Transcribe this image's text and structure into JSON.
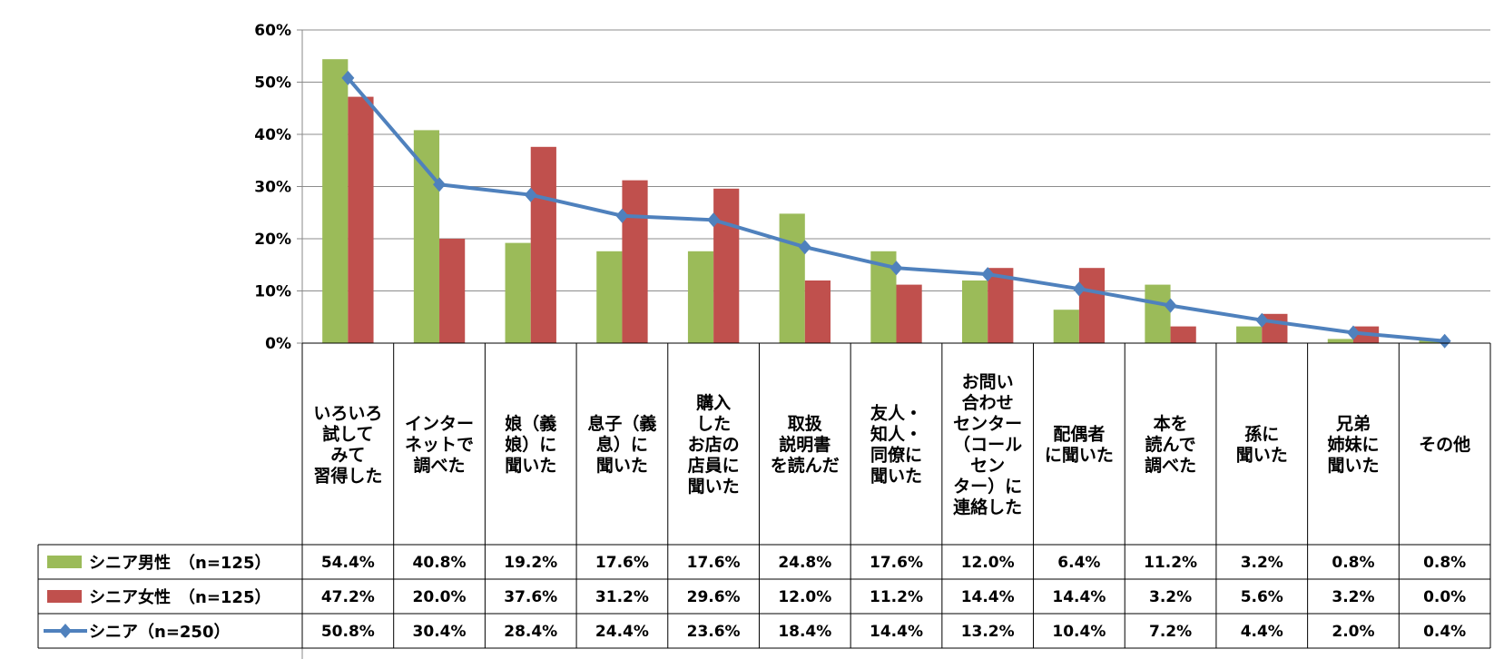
{
  "colors": {
    "male": "#9bbb59",
    "female": "#c0504d",
    "all": "#4f81bd"
  },
  "chart_data": {
    "type": "bar",
    "title": "",
    "xlabel": "",
    "ylabel": "",
    "ylim": [
      0,
      60
    ],
    "yticks": [
      "0%",
      "10%",
      "20%",
      "30%",
      "40%",
      "50%",
      "60%"
    ],
    "grid": true,
    "categories": [
      [
        "いろいろ",
        "試して",
        "みて",
        "習得した"
      ],
      [
        "インター",
        "ネットで",
        "調べた"
      ],
      [
        "娘（義",
        "娘）に",
        "聞いた"
      ],
      [
        "息子（義",
        "息）に",
        "聞いた"
      ],
      [
        "購入",
        "した",
        "お店の",
        "店員に",
        "聞いた"
      ],
      [
        "取扱",
        "説明書",
        "を読んだ"
      ],
      [
        "友人・",
        "知人・",
        "同僚に",
        "聞いた"
      ],
      [
        "お問い",
        "合わせ",
        "センター",
        "（コール",
        "セン",
        "ター）に",
        "連絡した"
      ],
      [
        "配偶者",
        "に聞いた"
      ],
      [
        "本を",
        "読んで",
        "調べた"
      ],
      [
        "孫に",
        "聞いた"
      ],
      [
        "兄弟",
        "姉妹に",
        "聞いた"
      ],
      [
        "その他"
      ]
    ],
    "series": [
      {
        "name": "シニア男性　（n=125）",
        "kind": "bar",
        "values": [
          54.4,
          40.8,
          19.2,
          17.6,
          17.6,
          24.8,
          17.6,
          12.0,
          6.4,
          11.2,
          3.2,
          0.8,
          0.8
        ],
        "labels": [
          "54.4%",
          "40.8%",
          "19.2%",
          "17.6%",
          "17.6%",
          "24.8%",
          "17.6%",
          "12.0%",
          "6.4%",
          "11.2%",
          "3.2%",
          "0.8%",
          "0.8%"
        ]
      },
      {
        "name": "シニア女性　（n=125）",
        "kind": "bar",
        "values": [
          47.2,
          20.0,
          37.6,
          31.2,
          29.6,
          12.0,
          11.2,
          14.4,
          14.4,
          3.2,
          5.6,
          3.2,
          0.0
        ],
        "labels": [
          "47.2%",
          "20.0%",
          "37.6%",
          "31.2%",
          "29.6%",
          "12.0%",
          "11.2%",
          "14.4%",
          "14.4%",
          "3.2%",
          "5.6%",
          "3.2%",
          "0.0%"
        ]
      },
      {
        "name": "シニア（n=250）",
        "kind": "line",
        "values": [
          50.8,
          30.4,
          28.4,
          24.4,
          23.6,
          18.4,
          14.4,
          13.2,
          10.4,
          7.2,
          4.4,
          2.0,
          0.4
        ],
        "labels": [
          "50.8%",
          "30.4%",
          "28.4%",
          "24.4%",
          "23.6%",
          "18.4%",
          "14.4%",
          "13.2%",
          "10.4%",
          "7.2%",
          "4.4%",
          "2.0%",
          "0.4%"
        ]
      }
    ]
  }
}
